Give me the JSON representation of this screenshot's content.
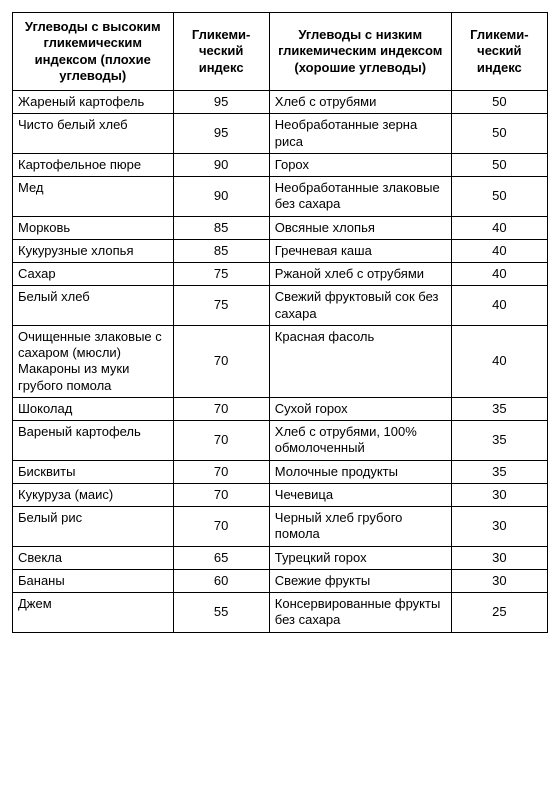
{
  "table": {
    "type": "table",
    "background_color": "#ffffff",
    "border_color": "#000000",
    "text_color": "#000000",
    "font_family": "Arial",
    "header_fontsize": 13,
    "cell_fontsize": 13,
    "col_widths_percent": [
      30,
      18,
      34,
      18
    ],
    "columns": [
      "Углеводы с высоким гликемическим индексом (плохие углеводы)",
      "Гликеми-ческий индекс",
      "Углеводы с низким гликемическим индексом (хорошие углеводы)",
      "Гликеми-ческий индекс"
    ],
    "rows": [
      {
        "bad_name": "Жареный картофель",
        "bad_gi": 95,
        "good_name": "Хлеб с отрубями",
        "good_gi": 50
      },
      {
        "bad_name": "Чисто белый хлеб",
        "bad_gi": 95,
        "good_name": "Необработанные зерна риса",
        "good_gi": 50
      },
      {
        "bad_name": "Картофельное пюре",
        "bad_gi": 90,
        "good_name": "Горох",
        "good_gi": 50
      },
      {
        "bad_name": "Мед",
        "bad_gi": 90,
        "good_name": "Необработанные злаковые без сахара",
        "good_gi": 50
      },
      {
        "bad_name": "Морковь",
        "bad_gi": 85,
        "good_name": "Овсяные хлопья",
        "good_gi": 40
      },
      {
        "bad_name": "Кукурузные хлопья",
        "bad_gi": 85,
        "good_name": "Гречневая каша",
        "good_gi": 40
      },
      {
        "bad_name": "Сахар",
        "bad_gi": 75,
        "good_name": "Ржаной хлеб с отрубями",
        "good_gi": 40
      },
      {
        "bad_name": "Белый хлеб",
        "bad_gi": 75,
        "good_name": "Свежий фруктовый сок без сахара",
        "good_gi": 40
      },
      {
        "bad_name": "Очищенные злаковые с сахаром (мюсли) Макароны из муки грубого помола",
        "bad_gi": 70,
        "good_name": "Красная фасоль",
        "good_gi": 40
      },
      {
        "bad_name": "Шоколад",
        "bad_gi": 70,
        "good_name": "Сухой горох",
        "good_gi": 35
      },
      {
        "bad_name": "Вареный картофель",
        "bad_gi": 70,
        "good_name": "Хлеб с отрубями, 100% обмолоченный",
        "good_gi": 35
      },
      {
        "bad_name": "Бисквиты",
        "bad_gi": 70,
        "good_name": "Молочные продукты",
        "good_gi": 35
      },
      {
        "bad_name": "Кукуруза (маис)",
        "bad_gi": 70,
        "good_name": "Чечевица",
        "good_gi": 30
      },
      {
        "bad_name": "Белый рис",
        "bad_gi": 70,
        "good_name": "Черный хлеб грубого помола",
        "good_gi": 30
      },
      {
        "bad_name": "Свекла",
        "bad_gi": 65,
        "good_name": "Турецкий горох",
        "good_gi": 30
      },
      {
        "bad_name": "Бананы",
        "bad_gi": 60,
        "good_name": "Свежие фрукты",
        "good_gi": 30
      },
      {
        "bad_name": "Джем",
        "bad_gi": 55,
        "good_name": "Консервированные фрукты без сахара",
        "good_gi": 25
      }
    ]
  }
}
